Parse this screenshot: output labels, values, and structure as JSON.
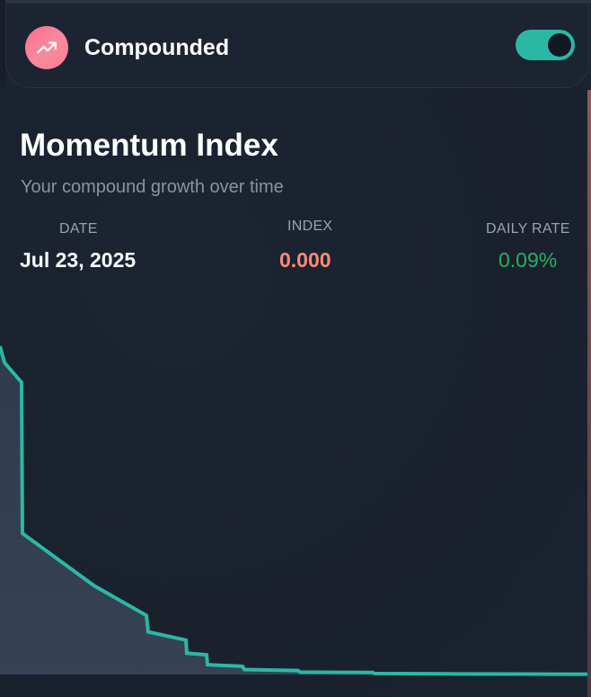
{
  "header": {
    "title": "Compounded",
    "icon": "trending-up-icon",
    "icon_gradient": [
      "#ff6b8b",
      "#f58aa0"
    ],
    "toggle_on": true,
    "toggle_color": "#2ab8a5"
  },
  "main": {
    "title": "Momentum Index",
    "subtitle": "Your compound growth over time",
    "stats": {
      "date_label": "DATE",
      "date_value": "Jul 23, 2025",
      "index_label": "INDEX",
      "index_value": "0.000",
      "index_color": "#f98b78",
      "rate_label": "DAILY RATE",
      "rate_value": "0.09%",
      "rate_color": "#27b05f"
    }
  },
  "chart_data": {
    "type": "area",
    "line_color": "#2ab8a5",
    "fill_color": "#3a4558",
    "x": [
      0,
      5,
      24,
      25,
      105,
      163,
      165,
      207,
      208,
      230,
      231,
      270,
      272,
      332,
      334,
      415,
      417,
      500,
      580,
      654
    ],
    "y": [
      100,
      95,
      89,
      43,
      27,
      18,
      13,
      10.5,
      6.5,
      6,
      3,
      2.5,
      1.5,
      1.2,
      0.7,
      0.6,
      0.3,
      0.2,
      0.15,
      0.1
    ],
    "ylim": [
      0,
      100
    ],
    "xlim": [
      0,
      654
    ],
    "grid": false,
    "legend": "none"
  }
}
